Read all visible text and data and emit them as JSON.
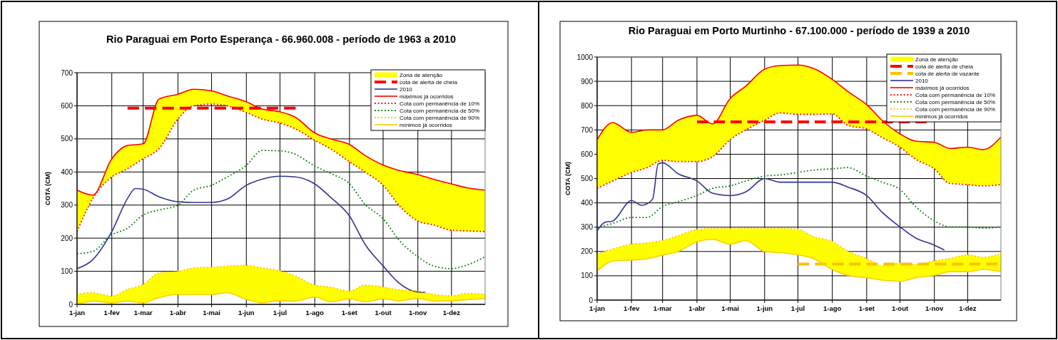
{
  "chart_data": [
    {
      "type": "line",
      "title": "Rio Paraguai em Porto Esperança - 66.960.008 - período de 1963 a 2010",
      "ylabel": "COTA (CM)",
      "x": [
        "--01-01",
        "--01-15",
        "--02-01",
        "--02-15",
        "--03-01",
        "--03-15",
        "--04-01",
        "--04-15",
        "--05-01",
        "--05-15",
        "--06-01",
        "--06-15",
        "--07-01",
        "--07-15",
        "--08-01",
        "--08-15",
        "--09-01",
        "--09-15",
        "--10-01",
        "--10-15",
        "--11-01",
        "--11-15",
        "--12-01",
        "--12-15",
        "--12-31"
      ],
      "series": [
        {
          "name": "Zona de atenção",
          "color": "#ffff00",
          "values": [
            null,
            null,
            null,
            null,
            null,
            null,
            null,
            null,
            null,
            null,
            null,
            null,
            null,
            null,
            null,
            null,
            null,
            null,
            null,
            null,
            null,
            null,
            null,
            null,
            null
          ],
          "lower": [
            220,
            320,
            385,
            410,
            440,
            470,
            560,
            600,
            605,
            600,
            580,
            560,
            548,
            530,
            496,
            470,
            431,
            400,
            360,
            300,
            252,
            240,
            224,
            222,
            220
          ],
          "upper": [
            345,
            330,
            440,
            480,
            485,
            620,
            635,
            650,
            645,
            630,
            612,
            590,
            582,
            565,
            518,
            500,
            483,
            450,
            421,
            405,
            392,
            378,
            364,
            352,
            345
          ]
        },
        {
          "color": "#fffe00",
          "values": [
            null,
            null,
            null,
            null,
            null,
            null,
            null,
            null,
            null,
            null,
            null,
            null,
            null,
            null,
            null,
            null,
            null,
            null,
            null,
            null,
            null,
            null,
            null,
            null,
            null
          ],
          "lower": [
            0,
            10,
            5,
            10,
            5,
            20,
            30,
            30,
            30,
            35,
            15,
            5,
            11,
            10,
            22,
            8,
            17,
            8,
            17,
            11,
            18,
            10,
            11,
            14,
            18
          ],
          "upper": [
            30,
            35,
            25,
            45,
            60,
            95,
            100,
            110,
            112,
            115,
            118,
            110,
            101,
            85,
            58,
            52,
            40,
            58,
            52,
            44,
            40,
            30,
            26,
            33,
            30
          ]
        },
        {
          "name": "cota de alerta de cheia",
          "color": "#ff0000",
          "line_style": "dashed",
          "x": [
            "--02-15",
            "--07-15"
          ],
          "values": [
            593,
            593
          ]
        },
        {
          "name": "2010",
          "color": "#333399",
          "line_style": "solid",
          "x": [
            "--01-01",
            "--01-15",
            "--02-01",
            "--02-15",
            "--02-22",
            "--03-01",
            "--03-15",
            "--04-01",
            "--04-15",
            "--05-01",
            "--05-15",
            "--06-01",
            "--06-15",
            "--07-01",
            "--07-15",
            "--08-01",
            "--08-15",
            "--09-01",
            "--09-15",
            "--10-01",
            "--10-15",
            "--11-01",
            "--11-08"
          ],
          "values": [
            108,
            135,
            220,
            320,
            350,
            348,
            325,
            310,
            308,
            308,
            318,
            360,
            378,
            387,
            385,
            364,
            324,
            267,
            181,
            116,
            65,
            37,
            36
          ]
        },
        {
          "name": "máximos já ocorridos",
          "color": "#ff0000",
          "line_style": "solid",
          "values": [
            345,
            330,
            440,
            480,
            485,
            620,
            635,
            650,
            645,
            630,
            612,
            590,
            582,
            565,
            518,
            500,
            483,
            450,
            421,
            405,
            392,
            378,
            364,
            352,
            345
          ]
        },
        {
          "name": "Cota com permanência de 10%",
          "color": "#ff0000",
          "line_style": "dotted",
          "values": [
            220,
            320,
            385,
            410,
            440,
            470,
            560,
            600,
            605,
            600,
            580,
            560,
            548,
            530,
            496,
            470,
            431,
            400,
            360,
            300,
            252,
            240,
            224,
            222,
            220
          ]
        },
        {
          "name": "Cota com permanência de 50%",
          "color": "#008000",
          "line_style": "dotted",
          "values": [
            153,
            160,
            210,
            230,
            270,
            285,
            300,
            345,
            360,
            385,
            420,
            465,
            464,
            453,
            418,
            396,
            364,
            302,
            259,
            195,
            144,
            116,
            108,
            119,
            144
          ]
        },
        {
          "name": "Cota com permanência de 90%",
          "color": "#ffc000",
          "line_style": "dotted",
          "values": [
            30,
            35,
            25,
            45,
            60,
            95,
            100,
            110,
            112,
            115,
            118,
            110,
            101,
            85,
            58,
            52,
            40,
            58,
            52,
            44,
            40,
            30,
            26,
            33,
            30
          ]
        },
        {
          "name": "mínimos já ocorridos",
          "color": "#ffcc00",
          "line_style": "solid",
          "values": [
            0,
            10,
            5,
            10,
            5,
            20,
            30,
            30,
            30,
            35,
            15,
            5,
            11,
            10,
            22,
            8,
            17,
            8,
            17,
            11,
            18,
            10,
            11,
            14,
            18
          ]
        }
      ],
      "xlim": [
        "--01-01",
        "--12-31"
      ],
      "xticks": [
        {
          "value": "--01-01",
          "label": "1-jan"
        },
        {
          "value": "--02-01",
          "label": "1-fev"
        },
        {
          "value": "--03-01",
          "label": "1-mar"
        },
        {
          "value": "--04-01",
          "label": "1-abr"
        },
        {
          "value": "--05-01",
          "label": "1-mai"
        },
        {
          "value": "--06-01",
          "label": "1-jun"
        },
        {
          "value": "--07-01",
          "label": "1-jul"
        },
        {
          "value": "--08-01",
          "label": "1-ago"
        },
        {
          "value": "--09-01",
          "label": "1-set"
        },
        {
          "value": "--10-01",
          "label": "1-out"
        },
        {
          "value": "--11-01",
          "label": "1-nov"
        },
        {
          "value": "--12-01",
          "label": "1-dez"
        }
      ],
      "ylim": [
        0,
        700
      ],
      "yticks": [
        0,
        100,
        200,
        300,
        400,
        500,
        600,
        700
      ],
      "grid": true,
      "legend": "top right"
    },
    {
      "type": "line",
      "title": "Rio Paraguai em Porto Murtinho - 67.100.000 - período de 1939 a 2010",
      "ylabel": "COTA (CM)",
      "x": [
        "--01-01",
        "--01-15",
        "--02-01",
        "--02-15",
        "--03-01",
        "--03-15",
        "--04-01",
        "--04-15",
        "--05-01",
        "--05-15",
        "--06-01",
        "--06-15",
        "--07-01",
        "--07-15",
        "--08-01",
        "--08-15",
        "--09-01",
        "--09-15",
        "--10-01",
        "--10-15",
        "--11-01",
        "--11-15",
        "--12-01",
        "--12-15",
        "--12-31"
      ],
      "series": [
        {
          "name": "Zona de atenção",
          "color": "#ffff00",
          "values": [
            null,
            null,
            null,
            null,
            null,
            null,
            null,
            null,
            null,
            null,
            null,
            null,
            null,
            null,
            null,
            null,
            null,
            null,
            null,
            null,
            null,
            null,
            null,
            null,
            null
          ],
          "lower": [
            460,
            490,
            525,
            545,
            575,
            570,
            570,
            590,
            660,
            700,
            740,
            770,
            764,
            764,
            766,
            719,
            704,
            669,
            629,
            580,
            540,
            480,
            475,
            470,
            475
          ],
          "upper": [
            660,
            730,
            690,
            700,
            700,
            740,
            760,
            725,
            830,
            880,
            950,
            965,
            967,
            953,
            908,
            858,
            804,
            739,
            684,
            654,
            649,
            624,
            629,
            619,
            671
          ]
        },
        {
          "color": "#fffe00",
          "values": [
            null,
            null,
            null,
            null,
            null,
            null,
            null,
            null,
            null,
            null,
            null,
            null,
            null,
            null,
            null,
            null,
            null,
            null,
            null,
            null,
            null,
            null,
            null,
            null,
            null
          ],
          "lower": [
            120,
            160,
            165,
            170,
            185,
            200,
            240,
            250,
            230,
            245,
            200,
            195,
            186,
            171,
            126,
            102,
            92,
            82,
            77,
            92,
            102,
            117,
            117,
            126,
            117
          ],
          "upper": [
            190,
            210,
            230,
            235,
            245,
            265,
            290,
            295,
            295,
            295,
            295,
            295,
            291,
            261,
            241,
            201,
            171,
            141,
            151,
            146,
            161,
            171,
            186,
            176,
            191
          ]
        },
        {
          "name": "cota de alerta de cheia",
          "color": "#ff0000",
          "line_style": "dashed",
          "x": [
            "--04-01",
            "--10-25"
          ],
          "values": [
            733,
            733
          ]
        },
        {
          "name": "cota de alerta de vazante",
          "color": "#ffc000",
          "line_style": "dashed",
          "x": [
            "--07-01",
            "--12-28"
          ],
          "values": [
            148,
            148
          ]
        },
        {
          "name": "2010",
          "color": "#333399",
          "line_style": "solid",
          "x": [
            "--01-01",
            "--01-08",
            "--01-15",
            "--02-01",
            "--02-10",
            "--02-20",
            "--02-25",
            "--03-01",
            "--03-15",
            "--04-01",
            "--04-15",
            "--05-01",
            "--05-15",
            "--06-01",
            "--06-15",
            "--07-01",
            "--07-15",
            "--08-01",
            "--08-15",
            "--09-01",
            "--09-15",
            "--10-01",
            "--10-15",
            "--11-01",
            "--11-10"
          ],
          "values": [
            285,
            320,
            325,
            410,
            390,
            415,
            560,
            565,
            520,
            490,
            440,
            430,
            445,
            500,
            485,
            485,
            485,
            485,
            465,
            430,
            361,
            301,
            256,
            226,
            206
          ]
        },
        {
          "name": "máximos já ocorridos",
          "color": "#ff0000",
          "line_style": "solid",
          "values": [
            660,
            730,
            690,
            700,
            700,
            740,
            760,
            725,
            830,
            880,
            950,
            965,
            967,
            953,
            908,
            858,
            804,
            739,
            684,
            654,
            649,
            624,
            629,
            619,
            671
          ]
        },
        {
          "name": "Cota com permanência de 10%",
          "color": "#ff0000",
          "line_style": "dotted",
          "values": [
            460,
            490,
            525,
            545,
            575,
            570,
            570,
            590,
            660,
            700,
            740,
            770,
            764,
            764,
            766,
            719,
            704,
            669,
            629,
            580,
            540,
            480,
            475,
            470,
            475
          ]
        },
        {
          "name": "Cota com permanência de 50%",
          "color": "#008000",
          "line_style": "dotted",
          "values": [
            300,
            315,
            340,
            340,
            385,
            405,
            430,
            460,
            470,
            490,
            510,
            515,
            525,
            535,
            540,
            545,
            510,
            485,
            455,
            385,
            326,
            301,
            301,
            296,
            301
          ]
        },
        {
          "name": "Cota com permanência de 90%",
          "color": "#ffc000",
          "line_style": "dotted",
          "values": [
            190,
            210,
            230,
            235,
            245,
            265,
            290,
            295,
            295,
            295,
            295,
            295,
            291,
            261,
            241,
            201,
            171,
            141,
            151,
            146,
            161,
            171,
            186,
            176,
            191
          ]
        },
        {
          "name": "mínimos já ocorridos",
          "color": "#ffcc00",
          "line_style": "solid",
          "values": [
            120,
            160,
            165,
            170,
            185,
            200,
            240,
            250,
            230,
            245,
            200,
            195,
            186,
            171,
            126,
            102,
            92,
            82,
            77,
            92,
            102,
            117,
            117,
            126,
            117
          ]
        }
      ],
      "xlim": [
        "--01-01",
        "--12-31"
      ],
      "xticks": [
        {
          "value": "--01-01",
          "label": "1-jan"
        },
        {
          "value": "--02-01",
          "label": "1-fev"
        },
        {
          "value": "--03-01",
          "label": "1-mar"
        },
        {
          "value": "--04-01",
          "label": "1-abr"
        },
        {
          "value": "--05-01",
          "label": "1-mai"
        },
        {
          "value": "--06-01",
          "label": "1-jun"
        },
        {
          "value": "--07-01",
          "label": "1-jul"
        },
        {
          "value": "--08-01",
          "label": "1-ago"
        },
        {
          "value": "--09-01",
          "label": "1-set"
        },
        {
          "value": "--10-01",
          "label": "1-out"
        },
        {
          "value": "--11-01",
          "label": "1-nov"
        },
        {
          "value": "--12-01",
          "label": "1-dez"
        }
      ],
      "ylim": [
        0,
        1000
      ],
      "yticks": [
        0,
        100,
        200,
        300,
        400,
        500,
        600,
        700,
        800,
        900,
        1000
      ],
      "grid": true,
      "legend": "top right"
    }
  ]
}
